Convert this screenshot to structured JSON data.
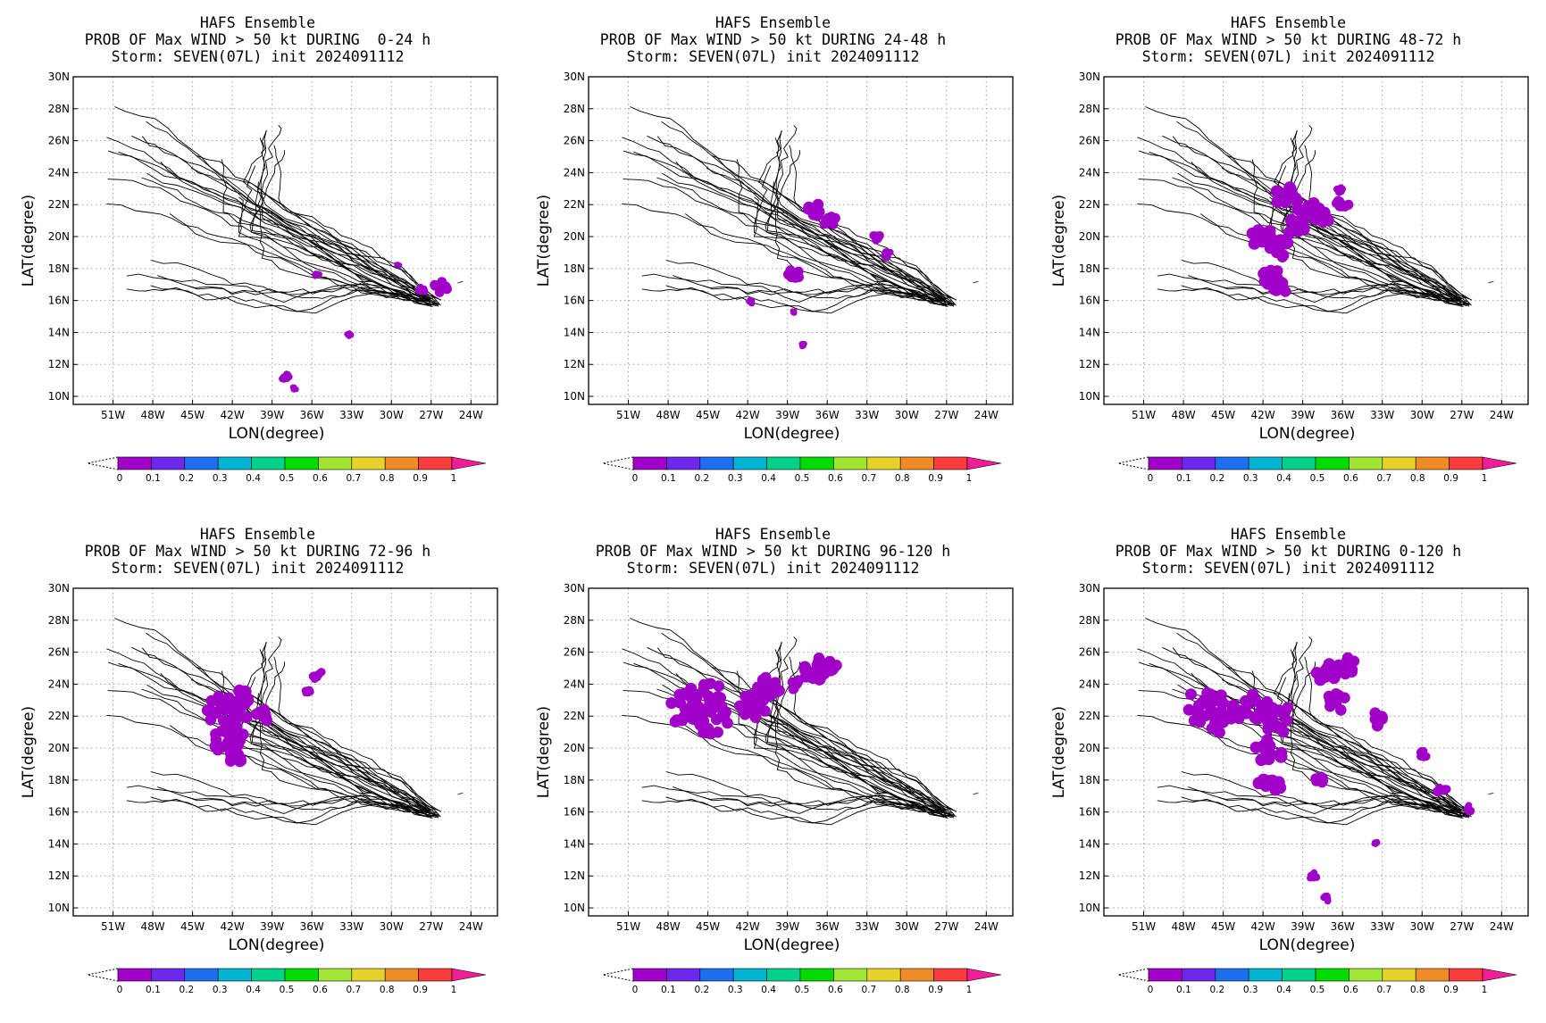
{
  "ensemble_title": "HAFS Ensemble",
  "storm_line": "Storm: SEVEN(07L) init 2024091112",
  "panels": [
    {
      "title_line2": "PROB OF Max WIND > 50 kt DURING  0-24 h"
    },
    {
      "title_line2": "PROB OF Max WIND > 50 kt DURING 24-48 h"
    },
    {
      "title_line2": "PROB OF Max WIND > 50 kt DURING 48-72 h"
    },
    {
      "title_line2": "PROB OF Max WIND > 50 kt DURING 72-96 h"
    },
    {
      "title_line2": "PROB OF Max WIND > 50 kt DURING 96-120 h"
    },
    {
      "title_line2": "PROB OF Max WIND > 50 kt DURING 0-120 h"
    }
  ],
  "axes": {
    "xlabel": "LON(degree)",
    "ylabel": "LAT(degree)",
    "lon_range": [
      -54,
      -22
    ],
    "lat_range": [
      9.5,
      30
    ],
    "lon_ticks": [
      -51,
      -48,
      -45,
      -42,
      -39,
      -36,
      -33,
      -30,
      -27,
      -24
    ],
    "lon_tick_labels": [
      "51W",
      "48W",
      "45W",
      "42W",
      "39W",
      "36W",
      "33W",
      "30W",
      "27W",
      "24W"
    ],
    "lat_ticks": [
      10,
      12,
      14,
      16,
      18,
      20,
      22,
      24,
      26,
      28,
      30
    ],
    "lat_tick_labels": [
      "10N",
      "12N",
      "14N",
      "16N",
      "18N",
      "20N",
      "22N",
      "24N",
      "26N",
      "28N",
      "30N"
    ],
    "grid": "dotted"
  },
  "colorbar": {
    "labels": [
      "0",
      "0.1",
      "0.2",
      "0.3",
      "0.4",
      "0.5",
      "0.6",
      "0.7",
      "0.8",
      "0.9",
      "1"
    ],
    "colors": [
      "#a000c8",
      "#6e28eb",
      "#1e6ef0",
      "#00b4d2",
      "#00d28c",
      "#00dc00",
      "#a0e632",
      "#e6d228",
      "#f08c28",
      "#fa3c3c",
      "#f01e96"
    ]
  }
}
